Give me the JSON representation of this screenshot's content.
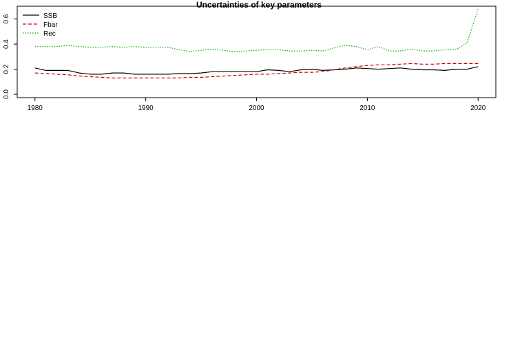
{
  "chart_data": {
    "type": "line",
    "title": "Uncertainties of key parameters",
    "xlabel": "",
    "ylabel": "",
    "xlim": [
      1980,
      2020
    ],
    "ylim": [
      0,
      0.7
    ],
    "xticks": [
      1980,
      1990,
      2000,
      2010,
      2020
    ],
    "yticks": [
      0.0,
      0.2,
      0.4,
      0.6
    ],
    "ytick_labels": [
      "0.0",
      "0.2",
      "0.4",
      "0.6"
    ],
    "grid": false,
    "legend_position": "top-left",
    "x": [
      1980,
      1981,
      1982,
      1983,
      1984,
      1985,
      1986,
      1987,
      1988,
      1989,
      1990,
      1991,
      1992,
      1993,
      1994,
      1995,
      1996,
      1997,
      1998,
      1999,
      2000,
      2001,
      2002,
      2003,
      2004,
      2005,
      2006,
      2007,
      2008,
      2009,
      2010,
      2011,
      2012,
      2013,
      2014,
      2015,
      2016,
      2017,
      2018,
      2019,
      2020
    ],
    "series": [
      {
        "name": "SSB",
        "color": "#000000",
        "dash": "solid",
        "values": [
          0.21,
          0.19,
          0.19,
          0.19,
          0.17,
          0.16,
          0.16,
          0.17,
          0.17,
          0.16,
          0.16,
          0.16,
          0.16,
          0.165,
          0.165,
          0.17,
          0.18,
          0.18,
          0.18,
          0.18,
          0.18,
          0.195,
          0.19,
          0.18,
          0.195,
          0.2,
          0.19,
          0.195,
          0.2,
          0.21,
          0.205,
          0.2,
          0.205,
          0.21,
          0.2,
          0.195,
          0.195,
          0.19,
          0.2,
          0.2,
          0.22
        ]
      },
      {
        "name": "Fbar",
        "color": "#cc0000",
        "dash": "dashed",
        "values": [
          0.17,
          0.165,
          0.16,
          0.155,
          0.145,
          0.14,
          0.135,
          0.13,
          0.13,
          0.13,
          0.13,
          0.13,
          0.13,
          0.13,
          0.135,
          0.135,
          0.14,
          0.145,
          0.15,
          0.155,
          0.16,
          0.16,
          0.165,
          0.17,
          0.175,
          0.175,
          0.18,
          0.195,
          0.21,
          0.22,
          0.23,
          0.235,
          0.235,
          0.24,
          0.245,
          0.24,
          0.24,
          0.245,
          0.245,
          0.245,
          0.245
        ]
      },
      {
        "name": "Rec",
        "color": "#00aa00",
        "dash": "dotted",
        "values": [
          0.38,
          0.38,
          0.38,
          0.39,
          0.38,
          0.375,
          0.375,
          0.38,
          0.375,
          0.38,
          0.375,
          0.375,
          0.375,
          0.355,
          0.34,
          0.35,
          0.36,
          0.35,
          0.34,
          0.345,
          0.35,
          0.355,
          0.355,
          0.345,
          0.345,
          0.35,
          0.345,
          0.37,
          0.39,
          0.38,
          0.355,
          0.38,
          0.345,
          0.345,
          0.36,
          0.345,
          0.345,
          0.355,
          0.355,
          0.41,
          0.68
        ]
      }
    ]
  }
}
